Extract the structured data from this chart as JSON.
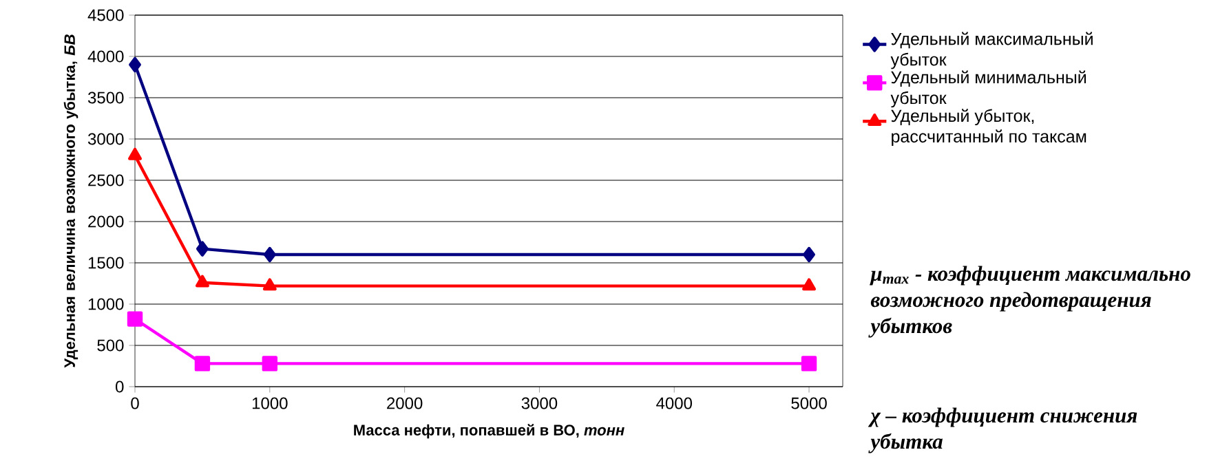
{
  "chart_data": {
    "type": "line",
    "xlabel": "Масса нефти, попавшей в ВО, *тонн*",
    "ylabel": "Удельная величина возможного убытка, *БВ*",
    "x": [
      0,
      500,
      1000,
      5000
    ],
    "series": [
      {
        "name": "Удельный максимальный убыток",
        "color": "#000080",
        "marker": "diamond",
        "values": [
          3900,
          1670,
          1600,
          1600
        ]
      },
      {
        "name": "Удельный минимальный убыток",
        "color": "#ff00ff",
        "marker": "square",
        "values": [
          820,
          280,
          280,
          280
        ]
      },
      {
        "name": "Удельный убыток, рассчитанный по таксам",
        "color": "#ff0000",
        "marker": "triangle",
        "values": [
          2800,
          1260,
          1220,
          1220
        ]
      }
    ],
    "xlim": [
      0,
      5250
    ],
    "xticks": [
      0,
      1000,
      2000,
      3000,
      4000,
      5000
    ],
    "ylim": [
      0,
      4500
    ],
    "yticks": [
      0,
      500,
      1000,
      1500,
      2000,
      2500,
      3000,
      3500,
      4000,
      4500
    ],
    "grid": "y",
    "legend": "right",
    "annotations": [
      "μ$_{max}$ - коэффициент максимально возможного предотвращения убытков",
      "χ – коэффициент снижения убытка"
    ]
  }
}
